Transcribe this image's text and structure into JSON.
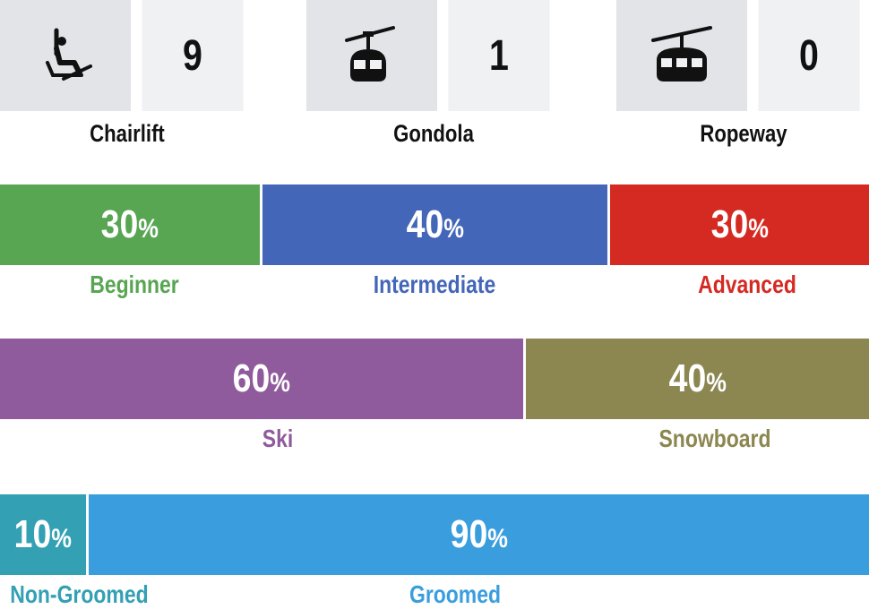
{
  "lifts": [
    {
      "label": "Chairlift",
      "count": "9",
      "icon": "chairlift-icon"
    },
    {
      "label": "Gondola",
      "count": "1",
      "icon": "gondola-icon"
    },
    {
      "label": "Ropeway",
      "count": "0",
      "icon": "ropeway-icon"
    }
  ],
  "difficulty": [
    {
      "label": "Beginner",
      "value": "30",
      "color": "#58a552"
    },
    {
      "label": "Intermediate",
      "value": "40",
      "color": "#4466b8"
    },
    {
      "label": "Advanced",
      "value": "30",
      "color": "#d52a21"
    }
  ],
  "style": [
    {
      "label": "Ski",
      "value": "60",
      "color": "#8f5b9c"
    },
    {
      "label": "Snowboard",
      "value": "40",
      "color": "#8c8650"
    }
  ],
  "grooming": [
    {
      "label": "Non-Groomed",
      "value": "10",
      "color": "#33a0b4"
    },
    {
      "label": "Groomed",
      "value": "90",
      "color": "#3a9ede"
    }
  ],
  "percent_symbol": "%"
}
